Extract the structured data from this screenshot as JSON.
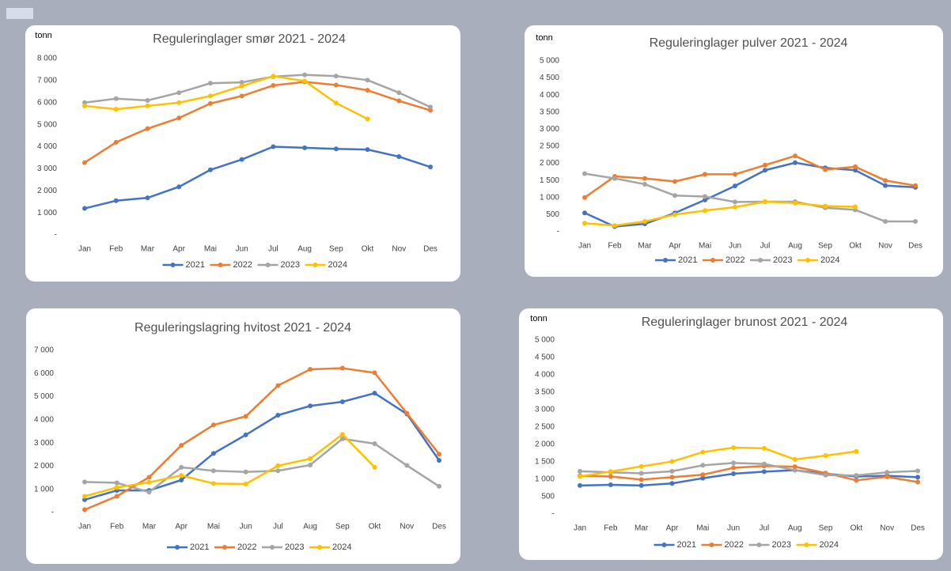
{
  "chart_data": [
    {
      "type": "line",
      "title": "Reguleringlager smør 2021 - 2024",
      "y_label": "tonn",
      "categories": [
        "Jan",
        "Feb",
        "Mar",
        "Apr",
        "Mai",
        "Jun",
        "Jul",
        "Aug",
        "Sep",
        "Okt",
        "Nov",
        "Des"
      ],
      "series": [
        {
          "name": "2021",
          "color": "#4472c4",
          "values": [
            1200,
            1550,
            1680,
            2180,
            2950,
            3420,
            4000,
            3950,
            3900,
            3870,
            3550,
            3080
          ]
        },
        {
          "name": "2022",
          "color": "#ed7d31",
          "values": [
            3280,
            4200,
            4820,
            5300,
            5960,
            6300,
            6780,
            6940,
            6800,
            6560,
            6080,
            5650
          ]
        },
        {
          "name": "2023",
          "color": "#a5a5a5",
          "values": [
            6000,
            6180,
            6100,
            6450,
            6880,
            6920,
            7180,
            7260,
            7200,
            7020,
            6450,
            5800
          ]
        },
        {
          "name": "2024",
          "color": "#ffc000",
          "values": [
            5850,
            5700,
            5850,
            6000,
            6300,
            6750,
            7200,
            6980,
            5980,
            5260,
            null,
            null
          ]
        }
      ],
      "ylim": [
        0,
        8000
      ],
      "yticks": [
        {
          "value": 0,
          "label": "-"
        },
        {
          "value": 1000,
          "label": "1 000"
        },
        {
          "value": 2000,
          "label": "2 000"
        },
        {
          "value": 3000,
          "label": "3 000"
        },
        {
          "value": 4000,
          "label": "4 000"
        },
        {
          "value": 5000,
          "label": "5 000"
        },
        {
          "value": 6000,
          "label": "6 000"
        },
        {
          "value": 7000,
          "label": "7 000"
        },
        {
          "value": 8000,
          "label": "8 000"
        }
      ]
    },
    {
      "type": "line",
      "title": "Reguleringlager pulver 2021 - 2024",
      "y_label": "tonn",
      "categories": [
        "Jan",
        "Feb",
        "Mar",
        "Apr",
        "Mai",
        "Jun",
        "Jul",
        "Aug",
        "Sep",
        "Okt",
        "Nov",
        "Des"
      ],
      "series": [
        {
          "name": "2021",
          "color": "#4472c4",
          "values": [
            550,
            150,
            230,
            550,
            930,
            1340,
            1800,
            2020,
            1870,
            1800,
            1350,
            1300
          ]
        },
        {
          "name": "2022",
          "color": "#ed7d31",
          "values": [
            1000,
            1620,
            1560,
            1470,
            1680,
            1680,
            1950,
            2220,
            1820,
            1900,
            1500,
            1350
          ]
        },
        {
          "name": "2023",
          "color": "#a5a5a5",
          "values": [
            1700,
            1560,
            1390,
            1060,
            1030,
            870,
            880,
            880,
            700,
            640,
            300,
            300
          ]
        },
        {
          "name": "2024",
          "color": "#ffc000",
          "values": [
            250,
            180,
            300,
            500,
            620,
            720,
            880,
            840,
            750,
            730,
            null,
            null
          ]
        }
      ],
      "ylim": [
        0,
        5000
      ],
      "yticks": [
        {
          "value": 0,
          "label": "-"
        },
        500,
        {
          "value": 1000,
          "label": "1 000"
        },
        {
          "value": 1500,
          "label": "1 500"
        },
        {
          "value": 2000,
          "label": "2 000"
        },
        {
          "value": 2500,
          "label": "2 500"
        },
        {
          "value": 3000,
          "label": "3 000"
        },
        {
          "value": 3500,
          "label": "3 500"
        },
        {
          "value": 4000,
          "label": "4 000"
        },
        {
          "value": 4500,
          "label": "4 500"
        },
        {
          "value": 5000,
          "label": "5 000"
        }
      ]
    },
    {
      "type": "line",
      "title": "Reguleringslagring hvitost 2021 - 2024",
      "categories": [
        "Jan",
        "Feb",
        "Mar",
        "Apr",
        "Mai",
        "Jun",
        "Jul",
        "Aug",
        "Sep",
        "Okt",
        "Nov",
        "Des"
      ],
      "series": [
        {
          "name": "2021",
          "color": "#4472c4",
          "values": [
            550,
            950,
            950,
            1400,
            2550,
            3350,
            4200,
            4600,
            4780,
            5150,
            4250,
            2250
          ]
        },
        {
          "name": "2022",
          "color": "#ed7d31",
          "values": [
            120,
            700,
            1520,
            2900,
            3780,
            4150,
            5480,
            6180,
            6230,
            6030,
            4280,
            2520
          ]
        },
        {
          "name": "2023",
          "color": "#a5a5a5",
          "values": [
            1320,
            1280,
            880,
            1950,
            1800,
            1750,
            1800,
            2050,
            3180,
            2970,
            2030,
            1130
          ]
        },
        {
          "name": "2024",
          "color": "#ffc000",
          "values": [
            700,
            1080,
            1300,
            1600,
            1250,
            1230,
            2020,
            2320,
            3370,
            1950,
            null,
            null
          ]
        }
      ],
      "ylim": [
        0,
        7000
      ],
      "yticks": [
        {
          "value": 0,
          "label": "-"
        },
        {
          "value": 1000,
          "label": "1 000"
        },
        {
          "value": 2000,
          "label": "2 000"
        },
        {
          "value": 3000,
          "label": "3 000"
        },
        {
          "value": 4000,
          "label": "4 000"
        },
        {
          "value": 5000,
          "label": "5 000"
        },
        {
          "value": 6000,
          "label": "6 000"
        },
        {
          "value": 7000,
          "label": "7 000"
        }
      ]
    },
    {
      "type": "line",
      "title": "Reguleringlager brunost 2021 - 2024",
      "y_label": "tonn",
      "categories": [
        "Jan",
        "Feb",
        "Mar",
        "Apr",
        "Mai",
        "Jun",
        "Jul",
        "Aug",
        "Sep",
        "Okt",
        "Nov",
        "Des"
      ],
      "series": [
        {
          "name": "2021",
          "color": "#4472c4",
          "values": [
            820,
            840,
            820,
            880,
            1030,
            1160,
            1220,
            1260,
            1160,
            1080,
            1100,
            1060
          ]
        },
        {
          "name": "2022",
          "color": "#ed7d31",
          "values": [
            1100,
            1080,
            990,
            1060,
            1130,
            1330,
            1380,
            1360,
            1180,
            970,
            1070,
            920
          ]
        },
        {
          "name": "2023",
          "color": "#a5a5a5",
          "values": [
            1230,
            1200,
            1170,
            1230,
            1400,
            1470,
            1440,
            1260,
            1120,
            1110,
            1200,
            1240
          ]
        },
        {
          "name": "2024",
          "color": "#ffc000",
          "values": [
            1080,
            1220,
            1370,
            1510,
            1780,
            1910,
            1890,
            1570,
            1680,
            1800,
            null,
            null
          ]
        }
      ],
      "ylim": [
        0,
        5000
      ],
      "yticks": [
        {
          "value": 0,
          "label": "-"
        },
        500,
        {
          "value": 1000,
          "label": "1 000"
        },
        {
          "value": 1500,
          "label": "1 500"
        },
        {
          "value": 2000,
          "label": "2 000"
        },
        {
          "value": 2500,
          "label": "2 500"
        },
        {
          "value": 3000,
          "label": "3 000"
        },
        {
          "value": 3500,
          "label": "3 500"
        },
        {
          "value": 4000,
          "label": "4 000"
        },
        {
          "value": 4500,
          "label": "4 500"
        },
        {
          "value": 5000,
          "label": "5 000"
        }
      ]
    }
  ]
}
